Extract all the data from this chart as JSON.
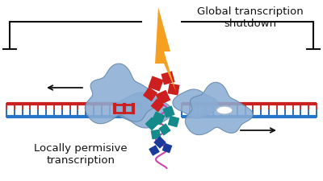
{
  "background_color": "#ffffff",
  "title_right": "Global transcription\nshutdown",
  "title_left": "Locally permisive\ntranscription",
  "dna_red_color": "#cc2020",
  "dna_blue_color": "#2277cc",
  "lightning_color": "#f5a020",
  "blob_color": "#8aadd4",
  "blob_edge_color": "#6688aa",
  "scatter_red": "#cc2020",
  "scatter_teal": "#158a8a",
  "scatter_dark_blue": "#1a3a9a",
  "rna_color": "#cc44aa",
  "line_color": "#111111",
  "font_size_label": 9.5,
  "fig_width": 4.0,
  "fig_height": 2.26,
  "dpi": 100
}
